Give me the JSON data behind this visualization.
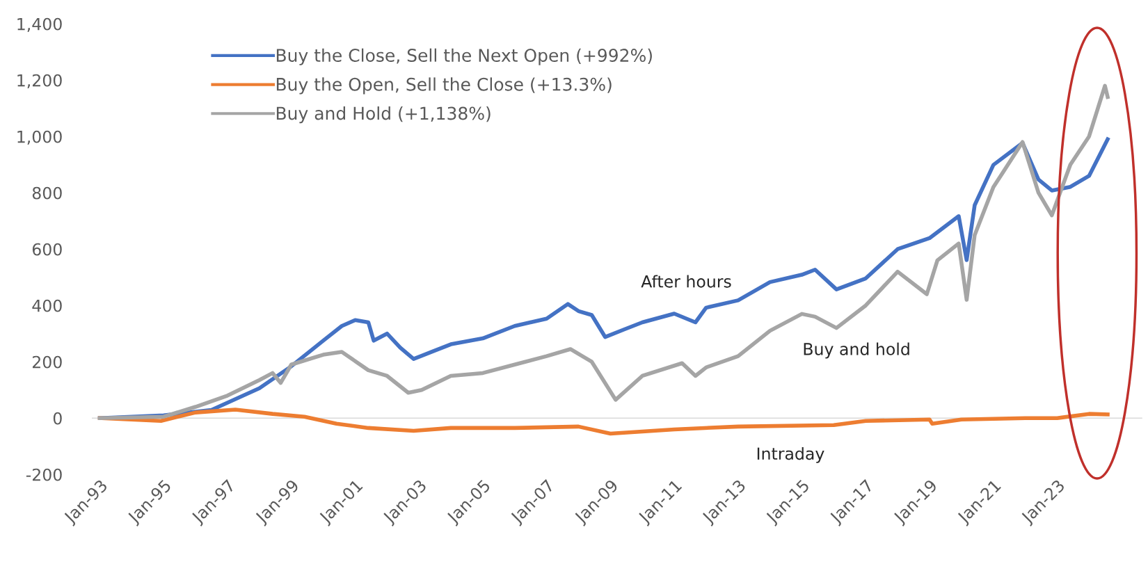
{
  "chart_data": {
    "type": "line",
    "series": [
      {
        "name": "Buy the Close, Sell the Next Open (+992%)",
        "color": "#4472c4",
        "x": [
          "1993-01",
          "1995-01",
          "1996-07",
          "1998-01",
          "1999-01",
          "2000-01",
          "2000-08",
          "2001-01",
          "2001-06",
          "2001-08",
          "2002-01",
          "2002-06",
          "2002-11",
          "2003-06",
          "2004-01",
          "2005-01",
          "2006-01",
          "2007-01",
          "2007-09",
          "2008-01",
          "2008-06",
          "2008-11",
          "2009-06",
          "2010-01",
          "2011-01",
          "2011-09",
          "2012-01",
          "2013-01",
          "2014-01",
          "2015-01",
          "2015-06",
          "2016-02",
          "2017-01",
          "2018-01",
          "2019-01",
          "2019-12",
          "2020-03",
          "2020-06",
          "2021-01",
          "2021-12",
          "2022-06",
          "2022-11",
          "2023-06",
          "2024-01",
          "2024-08"
        ],
        "values": [
          0,
          10,
          29,
          106,
          184,
          275,
          327,
          348,
          340,
          275,
          300,
          250,
          210,
          236,
          262,
          283,
          327,
          353,
          405,
          380,
          366,
          288,
          314,
          340,
          371,
          340,
          392,
          418,
          483,
          509,
          527,
          457,
          496,
          600,
          639,
          717,
          561,
          756,
          899,
          977,
          847,
          808,
          821,
          860,
          990
        ]
      },
      {
        "name": "Buy the Open, Sell the Close (+13.3%)",
        "color": "#ed7d31",
        "x": [
          "1993-01",
          "1994-12",
          "1996-01",
          "1997-04",
          "1998-06",
          "1999-06",
          "2000-06",
          "2001-06",
          "2002-11",
          "2004-01",
          "2006-01",
          "2008-01",
          "2009-01",
          "2011-01",
          "2013-01",
          "2016-01",
          "2017-01",
          "2019-01",
          "2019-02",
          "2020-01",
          "2022-01",
          "2023-01",
          "2024-01",
          "2024-08"
        ],
        "values": [
          0,
          -10,
          20,
          30,
          15,
          5,
          -20,
          -35,
          -45,
          -35,
          -35,
          -30,
          -55,
          -40,
          -30,
          -25,
          -10,
          -5,
          -20,
          -5,
          0,
          0,
          15,
          13
        ]
      },
      {
        "name": "Buy and Hold (+1,138%)",
        "color": "#a5a5a5",
        "x": [
          "1993-01",
          "1995-01",
          "1996-01",
          "1997-01",
          "1998-01",
          "1998-06",
          "1998-09",
          "1999-01",
          "2000-01",
          "2000-08",
          "2001-06",
          "2002-01",
          "2002-09",
          "2003-02",
          "2004-01",
          "2005-01",
          "2006-01",
          "2007-01",
          "2007-10",
          "2008-06",
          "2009-03",
          "2010-01",
          "2011-04",
          "2011-09",
          "2012-01",
          "2013-01",
          "2014-01",
          "2015-01",
          "2015-06",
          "2016-02",
          "2017-01",
          "2018-01",
          "2018-12",
          "2019-04",
          "2019-12",
          "2020-03",
          "2020-06",
          "2021-01",
          "2021-12",
          "2022-06",
          "2022-11",
          "2023-06",
          "2024-01",
          "2024-07",
          "2024-08"
        ],
        "values": [
          0,
          5,
          40,
          80,
          135,
          160,
          125,
          190,
          225,
          235,
          170,
          150,
          90,
          100,
          150,
          160,
          190,
          220,
          245,
          200,
          65,
          150,
          195,
          150,
          180,
          220,
          310,
          370,
          360,
          320,
          400,
          520,
          440,
          560,
          620,
          420,
          650,
          820,
          980,
          800,
          720,
          900,
          1000,
          1180,
          1140
        ]
      }
    ],
    "xlim": [
      "1992-10",
      "2025-09"
    ],
    "xticks": [
      {
        "value": "1993-01",
        "label": "Jan-93"
      },
      {
        "value": "1995-01",
        "label": "Jan-95"
      },
      {
        "value": "1997-01",
        "label": "Jan-97"
      },
      {
        "value": "1999-01",
        "label": "Jan-99"
      },
      {
        "value": "2001-01",
        "label": "Jan-01"
      },
      {
        "value": "2003-01",
        "label": "Jan-03"
      },
      {
        "value": "2005-01",
        "label": "Jan-05"
      },
      {
        "value": "2007-01",
        "label": "Jan-07"
      },
      {
        "value": "2009-01",
        "label": "Jan-09"
      },
      {
        "value": "2011-01",
        "label": "Jan-11"
      },
      {
        "value": "2013-01",
        "label": "Jan-13"
      },
      {
        "value": "2015-01",
        "label": "Jan-15"
      },
      {
        "value": "2017-01",
        "label": "Jan-17"
      },
      {
        "value": "2019-01",
        "label": "Jan-19"
      },
      {
        "value": "2021-01",
        "label": "Jan-21"
      },
      {
        "value": "2023-01",
        "label": "Jan-23"
      }
    ],
    "ylim": [
      -200,
      1400
    ],
    "yticks": [
      {
        "value": -200,
        "label": "-200"
      },
      0,
      200,
      400,
      600,
      800,
      {
        "value": 1000,
        "label": "1,000"
      },
      {
        "value": 1200,
        "label": "1,200"
      },
      {
        "value": 1400,
        "label": "1,400"
      }
    ],
    "ref_lines": [
      {
        "axis": "y",
        "value": 0,
        "color": "#d9d9d9"
      }
    ],
    "annotations": [
      "After hours",
      "Buy and hold",
      "Intraday"
    ],
    "grid": false,
    "legend": "top left",
    "marker": "none",
    "line_style": "solid"
  }
}
